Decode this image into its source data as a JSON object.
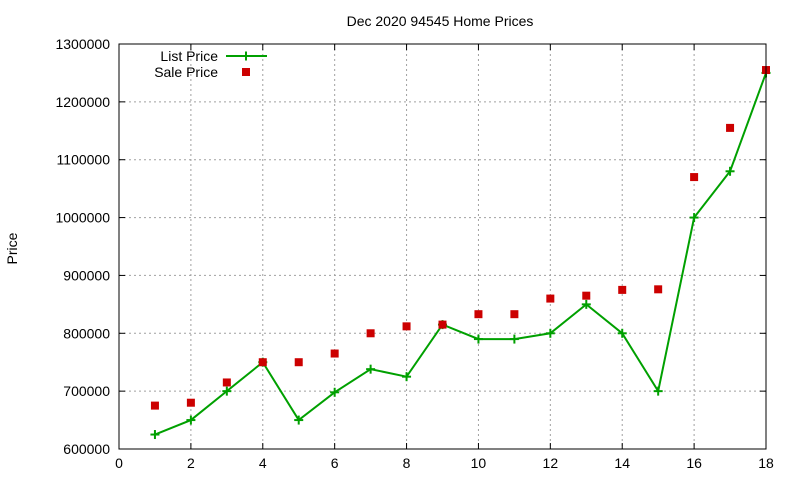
{
  "chart_data": {
    "type": "line",
    "title": "Dec 2020 94545 Home Prices",
    "xlabel": "",
    "ylabel": "Price",
    "xlim": [
      0,
      18
    ],
    "ylim": [
      600000,
      1300000
    ],
    "xticks": [
      0,
      2,
      4,
      6,
      8,
      10,
      12,
      14,
      16,
      18
    ],
    "yticks": [
      600000,
      700000,
      800000,
      900000,
      1000000,
      1100000,
      1200000,
      1300000
    ],
    "grid": true,
    "legend_position": "top-left",
    "series": [
      {
        "name": "List Price",
        "style": "line-with-plus-markers",
        "color": "#00a000",
        "x": [
          1,
          2,
          3,
          4,
          5,
          6,
          7,
          8,
          9,
          10,
          11,
          12,
          13,
          14,
          15,
          16,
          17,
          18
        ],
        "values": [
          625000,
          650000,
          700000,
          750000,
          650000,
          698000,
          738000,
          725000,
          815000,
          790000,
          790000,
          800000,
          850000,
          800000,
          700000,
          1000000,
          1080000,
          1250000
        ]
      },
      {
        "name": "Sale Price",
        "style": "square-markers",
        "color": "#cc0000",
        "x": [
          1,
          2,
          3,
          4,
          5,
          6,
          7,
          8,
          9,
          10,
          11,
          12,
          13,
          14,
          15,
          16,
          17,
          18
        ],
        "values": [
          675000,
          680000,
          715000,
          750000,
          750000,
          765000,
          800000,
          812000,
          815000,
          833000,
          833000,
          860000,
          865000,
          875000,
          876000,
          1070000,
          1155000,
          1255000
        ]
      }
    ]
  }
}
